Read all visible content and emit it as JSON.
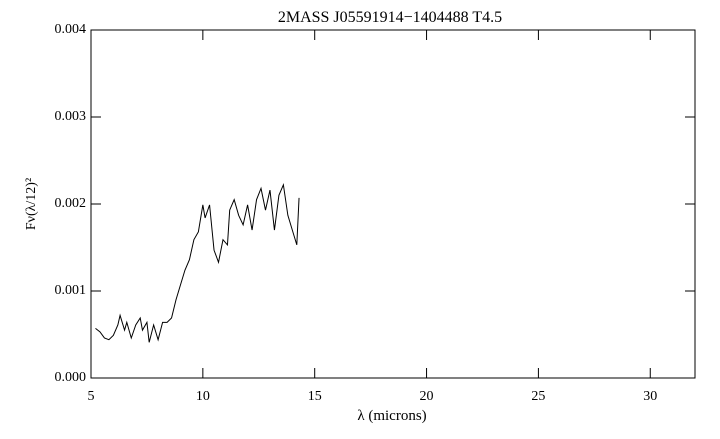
{
  "chart_data": {
    "type": "line",
    "title": "2MASS J05591914−1404488  T4.5",
    "x_label": "λ (microns)",
    "y_label": "Fν(λ/12)²",
    "x": [
      5.2,
      5.4,
      5.6,
      5.8,
      6.0,
      6.2,
      6.3,
      6.5,
      6.6,
      6.8,
      7.0,
      7.2,
      7.3,
      7.5,
      7.6,
      7.8,
      8.0,
      8.2,
      8.4,
      8.6,
      8.8,
      9.0,
      9.2,
      9.4,
      9.6,
      9.8,
      10.0,
      10.1,
      10.3,
      10.5,
      10.7,
      10.9,
      11.1,
      11.2,
      11.4,
      11.6,
      11.8,
      12.0,
      12.2,
      12.4,
      12.6,
      12.8,
      13.0,
      13.2,
      13.4,
      13.6,
      13.8,
      14.0,
      14.2,
      14.3
    ],
    "series": [
      {
        "color": "#000000",
        "values": [
          0.00057,
          0.00053,
          0.00046,
          0.00044,
          0.00049,
          0.00061,
          0.00072,
          0.00055,
          0.00064,
          0.00046,
          0.00061,
          0.00069,
          0.00055,
          0.00064,
          0.00041,
          0.00061,
          0.00044,
          0.00064,
          0.00064,
          0.00069,
          0.0009,
          0.00107,
          0.00124,
          0.00136,
          0.00159,
          0.00168,
          0.00199,
          0.00184,
          0.00199,
          0.00147,
          0.00133,
          0.00159,
          0.00153,
          0.00193,
          0.00205,
          0.00187,
          0.00176,
          0.00199,
          0.0017,
          0.00205,
          0.00218,
          0.00193,
          0.00216,
          0.0017,
          0.0021,
          0.00222,
          0.00187,
          0.0017,
          0.00153,
          0.00207
        ]
      }
    ],
    "xlim": [
      5,
      32
    ],
    "xticks": [
      5,
      10,
      15,
      20,
      25,
      30
    ],
    "ylim": [
      0,
      0.004
    ],
    "yticks": [
      {
        "value": 0,
        "label": "0.000"
      },
      {
        "value": 0.001,
        "label": "0.001"
      },
      {
        "value": 0.002,
        "label": "0.002"
      },
      {
        "value": 0.003,
        "label": "0.003"
      },
      {
        "value": 0.004,
        "label": "0.004"
      }
    ],
    "grid": false
  }
}
